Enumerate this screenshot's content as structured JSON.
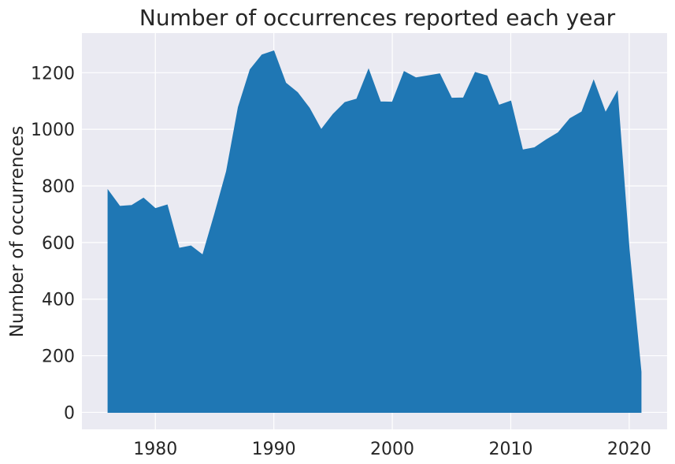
{
  "chart_data": {
    "type": "area",
    "title": "Number of occurrences reported each year",
    "xlabel": "",
    "ylabel": "Number of occurrences",
    "xlim": [
      1973.8,
      2023.2
    ],
    "ylim": [
      -60,
      1340
    ],
    "x_ticks": [
      1980,
      1990,
      2000,
      2010,
      2020
    ],
    "y_ticks": [
      0,
      200,
      400,
      600,
      800,
      1000,
      1200
    ],
    "grid": true,
    "colors": {
      "fill": "#1f77b4",
      "background": "#eaeaf2",
      "grid": "#ffffff",
      "text": "#262626"
    },
    "x": [
      1976,
      1977,
      1978,
      1979,
      1980,
      1981,
      1982,
      1983,
      1984,
      1985,
      1986,
      1987,
      1988,
      1989,
      1990,
      1991,
      1992,
      1993,
      1994,
      1995,
      1996,
      1997,
      1998,
      1999,
      2000,
      2001,
      2002,
      2003,
      2004,
      2005,
      2006,
      2007,
      2008,
      2009,
      2010,
      2011,
      2012,
      2013,
      2014,
      2015,
      2016,
      2017,
      2018,
      2019,
      2020,
      2021
    ],
    "values": [
      785,
      728,
      731,
      757,
      720,
      733,
      580,
      588,
      556,
      700,
      851,
      1078,
      1211,
      1263,
      1277,
      1164,
      1130,
      1075,
      999,
      1053,
      1095,
      1107,
      1212,
      1097,
      1096,
      1204,
      1182,
      1189,
      1196,
      1110,
      1111,
      1201,
      1189,
      1085,
      1100,
      927,
      935,
      963,
      988,
      1038,
      1062,
      1173,
      1059,
      1134,
      574,
      143
    ]
  }
}
